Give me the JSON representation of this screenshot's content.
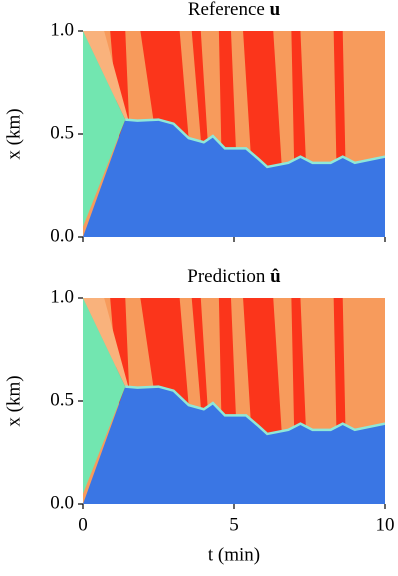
{
  "chart_data": [
    {
      "type": "heatmap",
      "title": "Reference",
      "title_symbol": "u",
      "xlim": [
        0,
        10
      ],
      "xticks": [
        0,
        5,
        10
      ],
      "ylim": [
        0,
        1
      ],
      "yticks": [
        {
          "value": 0,
          "label": "0.0"
        },
        {
          "value": 0.5,
          "label": "0.5"
        },
        {
          "value": 1,
          "label": "1.0"
        }
      ],
      "ylabel": "x (km)"
    },
    {
      "type": "heatmap",
      "title": "Prediction",
      "title_symbol": "û",
      "xlim": [
        0,
        10
      ],
      "xticks": [
        0,
        5,
        10
      ],
      "ylim": [
        0,
        1
      ],
      "yticks": [
        {
          "value": 0,
          "label": "0.0"
        },
        {
          "value": 0.5,
          "label": "0.5"
        },
        {
          "value": 1,
          "label": "1.0"
        }
      ],
      "ylabel": "x (km)",
      "xlabel": "t (min)"
    }
  ]
}
